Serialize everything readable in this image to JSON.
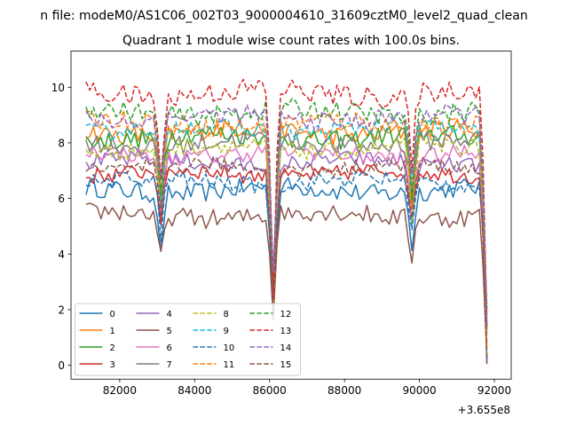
{
  "chart_data": {
    "type": "line",
    "suptitle": "n file: modeM0/AS1C06_002T03_9000004610_31609cztM0_level2_quad_clean",
    "title": "Quadrant 1 module wise count rates with 100.0s bins.",
    "xlabel": "",
    "ylabel": "",
    "x_offset_label": "+3.655e8",
    "x_ticks": [
      82000,
      84000,
      86000,
      88000,
      90000,
      92000
    ],
    "x_tick_labels": [
      "82000",
      "84000",
      "86000",
      "88000",
      "90000",
      "92000"
    ],
    "y_ticks": [
      0,
      2,
      4,
      6,
      8,
      10
    ],
    "y_tick_labels": [
      "0",
      "2",
      "4",
      "6",
      "8",
      "10"
    ],
    "xlim": [
      80700,
      92450
    ],
    "ylim": [
      -0.5,
      11.3
    ],
    "x_range": [
      81100,
      91800
    ],
    "dips": [
      {
        "x": 83100,
        "depth": 0.32
      },
      {
        "x": 86100,
        "depth": 0.8
      },
      {
        "x": 89800,
        "depth": 0.35
      },
      {
        "x": 91800,
        "depth": 1.0
      }
    ],
    "gaps": [
      [
        86200,
        86100
      ]
    ],
    "series": [
      {
        "name": "0",
        "mean": 6.3,
        "noise": 0.35,
        "color": "#1f77b4",
        "dash": "solid"
      },
      {
        "name": "1",
        "mean": 8.4,
        "noise": 0.35,
        "color": "#ff7f0e",
        "dash": "solid"
      },
      {
        "name": "2",
        "mean": 8.2,
        "noise": 0.35,
        "color": "#2ca02c",
        "dash": "solid"
      },
      {
        "name": "3",
        "mean": 6.9,
        "noise": 0.3,
        "color": "#d62728",
        "dash": "solid"
      },
      {
        "name": "4",
        "mean": 7.3,
        "noise": 0.3,
        "color": "#9467bd",
        "dash": "solid"
      },
      {
        "name": "5",
        "mean": 5.4,
        "noise": 0.35,
        "color": "#8c564b",
        "dash": "solid"
      },
      {
        "name": "6",
        "mean": 7.6,
        "noise": 0.3,
        "color": "#e377c2",
        "dash": "solid"
      },
      {
        "name": "7",
        "mean": 8.0,
        "noise": 0.35,
        "color": "#7f7f7f",
        "dash": "solid"
      },
      {
        "name": "8",
        "mean": 7.8,
        "noise": 0.3,
        "color": "#bcbd22",
        "dash": "dashed"
      },
      {
        "name": "9",
        "mean": 8.5,
        "noise": 0.3,
        "color": "#17becf",
        "dash": "dashed"
      },
      {
        "name": "10",
        "mean": 6.6,
        "noise": 0.3,
        "color": "#1f77b4",
        "dash": "dashed"
      },
      {
        "name": "11",
        "mean": 8.7,
        "noise": 0.35,
        "color": "#ff7f0e",
        "dash": "dashed"
      },
      {
        "name": "12",
        "mean": 9.1,
        "noise": 0.35,
        "color": "#2ca02c",
        "dash": "dashed"
      },
      {
        "name": "13",
        "mean": 9.8,
        "noise": 0.4,
        "color": "#d62728",
        "dash": "dashed"
      },
      {
        "name": "14",
        "mean": 8.9,
        "noise": 0.35,
        "color": "#9467bd",
        "dash": "dashed"
      },
      {
        "name": "15",
        "mean": 7.1,
        "noise": 0.3,
        "color": "#8c564b",
        "dash": "dashed"
      }
    ],
    "legend": {
      "location": "lower-left",
      "columns": 4,
      "font": "small"
    }
  }
}
